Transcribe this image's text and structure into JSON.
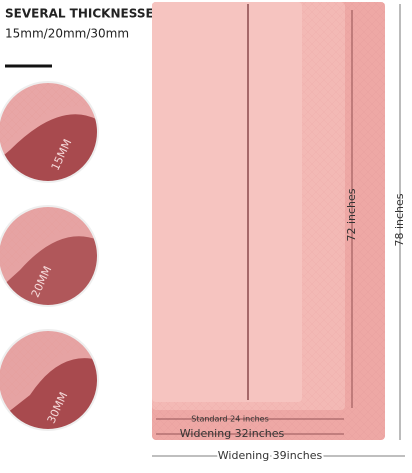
{
  "header": {
    "title": "SEVERAL THICKNESSES",
    "subtitle": "15mm/20mm/30mm"
  },
  "thickness_badges": [
    "15MM",
    "20MM",
    "30MM"
  ],
  "dimensions": {
    "length_standard": "72 inches",
    "length_wide": "78 inches",
    "width_standard": "Standard 24 inches",
    "width_medium": "Widening 32inches",
    "width_wide": "Widening 39inches"
  }
}
